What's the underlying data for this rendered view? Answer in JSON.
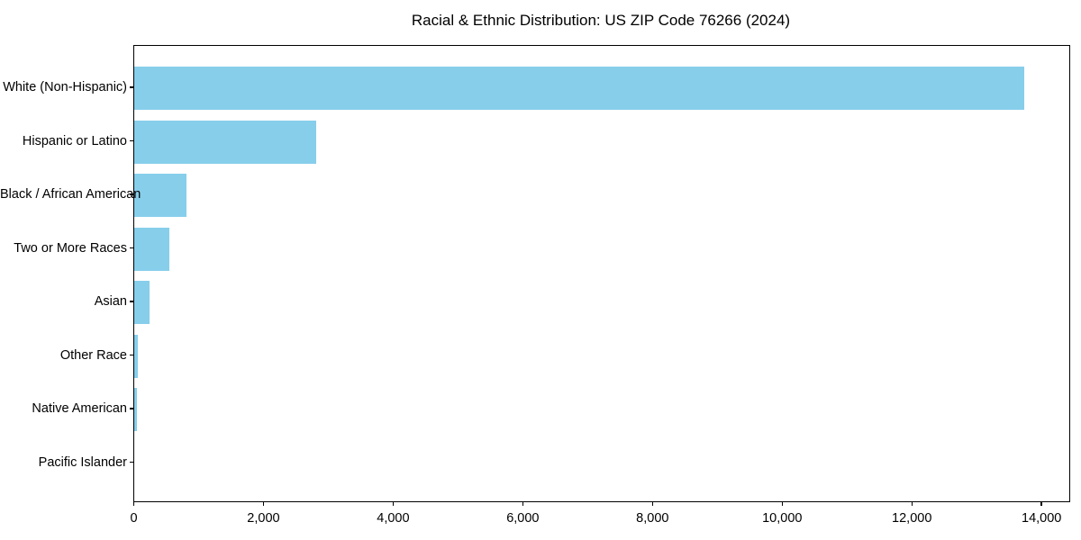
{
  "chart_data": {
    "type": "bar",
    "orientation": "horizontal",
    "title": "Racial & Ethnic Distribution: US ZIP Code 76266 (2024)",
    "categories": [
      "White (Non-Hispanic)",
      "Hispanic or Latino",
      "Black / African American",
      "Two or More Races",
      "Asian",
      "Other Race",
      "Native American",
      "Pacific Islander"
    ],
    "values": [
      13730,
      2800,
      800,
      535,
      230,
      55,
      45,
      0
    ],
    "xlabel": "",
    "ylabel": "",
    "xlim": [
      0,
      14421
    ],
    "xticks": [
      0,
      2000,
      4000,
      6000,
      8000,
      10000,
      12000,
      14000
    ],
    "xtick_labels": [
      "0",
      "2,000",
      "4,000",
      "6,000",
      "8,000",
      "10,000",
      "12,000",
      "14,000"
    ],
    "bar_color": "#87CEEB",
    "axis_color": "#000000",
    "grid": false,
    "legend": null
  }
}
